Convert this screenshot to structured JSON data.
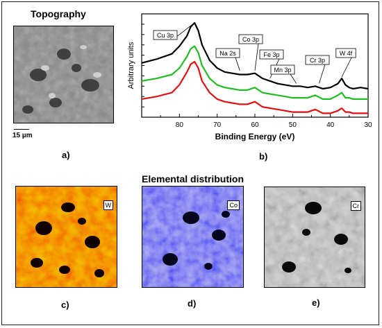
{
  "figure": {
    "topography_title": "Topography",
    "elemental_title": "Elemental distribution",
    "scale_bar_label": "15 µm",
    "panel_labels": [
      "a)",
      "b)",
      "c)",
      "d)",
      "e)"
    ],
    "map_tags": [
      "W",
      "Co",
      "Cr"
    ]
  },
  "chart_data": {
    "type": "line",
    "xlabel": "Binding Energy (eV)",
    "ylabel": "Arbitrary units",
    "xlim": [
      90,
      30
    ],
    "x_reversed": true,
    "x_ticks": [
      80,
      70,
      60,
      50,
      40,
      30
    ],
    "grid": false,
    "peak_labels": [
      "Cu 3p",
      "Na 2s",
      "Co 3p",
      "Fe 3p",
      "Mn 3p",
      "Cr 3p",
      "W 4f"
    ],
    "peak_positions_eV": [
      76,
      64,
      60,
      56,
      49,
      43,
      37
    ],
    "series": [
      {
        "color": "#000000",
        "x": [
          90,
          86,
          82,
          80,
          78,
          77,
          76,
          75,
          74,
          72,
          70,
          68,
          66,
          64,
          62,
          60,
          58,
          56,
          54,
          52,
          50,
          48,
          46,
          44,
          42,
          40,
          38,
          37,
          36,
          35,
          34,
          32,
          30
        ],
        "y": [
          7.2,
          7.5,
          7.9,
          8.5,
          9.3,
          10.0,
          10.3,
          9.7,
          8.6,
          7.4,
          6.8,
          6.5,
          6.4,
          6.3,
          6.3,
          6.4,
          6.0,
          5.8,
          5.6,
          5.5,
          5.4,
          5.4,
          5.3,
          5.4,
          5.2,
          5.3,
          5.6,
          6.0,
          5.5,
          5.3,
          5.2,
          5.3,
          5.2
        ]
      },
      {
        "color": "#22bb22",
        "x": [
          90,
          86,
          82,
          80,
          78,
          77,
          76,
          75,
          74,
          72,
          70,
          68,
          66,
          64,
          62,
          60,
          58,
          56,
          54,
          52,
          50,
          48,
          46,
          44,
          42,
          40,
          38,
          37,
          36,
          35,
          34,
          32,
          30
        ],
        "y": [
          5.8,
          6.0,
          6.3,
          6.8,
          7.7,
          8.3,
          8.5,
          8.0,
          7.0,
          6.0,
          5.5,
          5.3,
          5.2,
          5.1,
          5.1,
          5.3,
          4.9,
          4.8,
          4.7,
          4.6,
          4.5,
          4.5,
          4.5,
          4.7,
          4.4,
          4.4,
          4.7,
          4.9,
          4.5,
          4.5,
          4.4,
          4.4,
          4.4
        ]
      },
      {
        "color": "#dd1111",
        "x": [
          90,
          86,
          82,
          80,
          78,
          77,
          76,
          75,
          74,
          72,
          70,
          68,
          66,
          64,
          62,
          60,
          58,
          56,
          54,
          52,
          50,
          48,
          46,
          44,
          42,
          40,
          38,
          37,
          36,
          35,
          34,
          32,
          30
        ],
        "y": [
          4.4,
          4.6,
          4.9,
          5.5,
          6.5,
          7.1,
          7.3,
          6.8,
          5.8,
          4.9,
          4.4,
          4.2,
          4.1,
          4.0,
          4.0,
          4.2,
          3.8,
          3.7,
          3.6,
          3.5,
          3.4,
          3.4,
          3.4,
          3.6,
          3.3,
          3.3,
          3.5,
          3.7,
          3.4,
          3.4,
          3.3,
          3.3,
          3.3
        ]
      }
    ]
  }
}
